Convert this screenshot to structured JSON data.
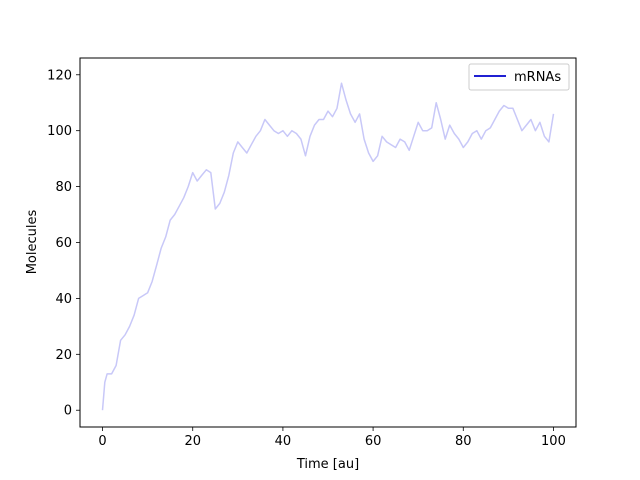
{
  "chart_data": {
    "type": "line",
    "title": "",
    "xlabel": "Time [au]",
    "ylabel": "Molecules",
    "xlim": [
      -5,
      105
    ],
    "ylim": [
      -6,
      126
    ],
    "xticks": [
      0,
      20,
      40,
      60,
      80,
      100
    ],
    "yticks": [
      0,
      20,
      40,
      60,
      80,
      100,
      120
    ],
    "grid": false,
    "legend": {
      "placement": "top-right",
      "entries": [
        "mRNAs"
      ]
    },
    "series": [
      {
        "name": "mRNAs",
        "legend_color": "#0000cc",
        "line_color": "#c8c8f8",
        "x": [
          0,
          0.5,
          1,
          2,
          3,
          4,
          5,
          6,
          7,
          8,
          9,
          10,
          11,
          12,
          13,
          14,
          15,
          16,
          17,
          18,
          19,
          20,
          21,
          22,
          23,
          24,
          25,
          26,
          27,
          28,
          29,
          30,
          31,
          32,
          33,
          34,
          35,
          36,
          37,
          38,
          39,
          40,
          41,
          42,
          43,
          44,
          45,
          46,
          47,
          48,
          49,
          50,
          51,
          52,
          53,
          54,
          55,
          56,
          57,
          58,
          59,
          60,
          61,
          62,
          63,
          64,
          65,
          66,
          67,
          68,
          69,
          70,
          71,
          72,
          73,
          74,
          75,
          76,
          77,
          78,
          79,
          80,
          81,
          82,
          83,
          84,
          85,
          86,
          87,
          88,
          89,
          90,
          91,
          92,
          93,
          94,
          95,
          96,
          97,
          98,
          99,
          100
        ],
        "y": [
          0,
          10,
          13,
          13,
          16,
          25,
          27,
          30,
          34,
          40,
          41,
          42,
          46,
          52,
          58,
          62,
          68,
          70,
          73,
          76,
          80,
          85,
          82,
          84,
          86,
          85,
          72,
          74,
          78,
          84,
          92,
          96,
          94,
          92,
          95,
          98,
          100,
          104,
          102,
          100,
          99,
          100,
          98,
          100,
          99,
          97,
          91,
          98,
          102,
          104,
          104,
          107,
          105,
          108,
          117,
          111,
          106,
          103,
          106,
          97,
          92,
          89,
          91,
          98,
          96,
          95,
          94,
          97,
          96,
          93,
          98,
          103,
          100,
          100,
          101,
          110,
          104,
          97,
          102,
          99,
          97,
          94,
          96,
          99,
          100,
          97,
          100,
          101,
          104,
          107,
          109,
          108,
          108,
          104,
          100,
          102,
          104,
          100,
          103,
          98,
          96,
          106
        ]
      }
    ]
  }
}
